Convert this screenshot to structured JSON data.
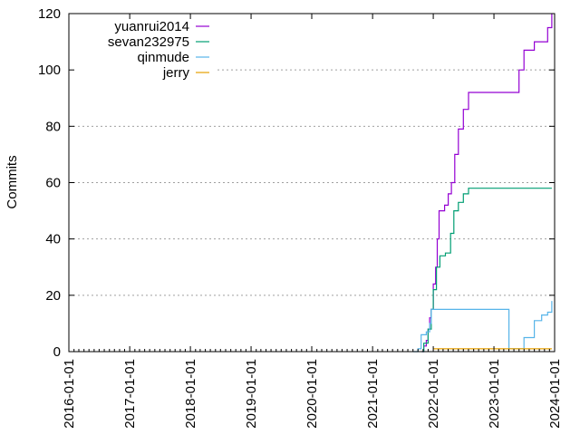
{
  "chart_data": {
    "type": "line",
    "xlabel": "",
    "ylabel": "Commits",
    "xlim": [
      "2016-01-01",
      "2024-01-01"
    ],
    "ylim": [
      0,
      120
    ],
    "x_ticks": [
      "2016-01-01",
      "2017-01-01",
      "2018-01-01",
      "2019-01-01",
      "2020-01-01",
      "2021-01-01",
      "2022-01-01",
      "2023-01-01",
      "2024-01-01"
    ],
    "y_ticks": [
      0,
      20,
      40,
      60,
      80,
      100,
      120
    ],
    "grid": "horizontal",
    "legend_position": "top-left",
    "series": [
      {
        "name": "yuanrui2014",
        "color": "#9400d3",
        "points": [
          [
            "2021-10-25",
            0
          ],
          [
            "2021-11-05",
            2
          ],
          [
            "2021-11-20",
            4
          ],
          [
            "2021-12-01",
            8
          ],
          [
            "2021-12-10",
            12
          ],
          [
            "2021-12-20",
            15
          ],
          [
            "2022-01-01",
            24
          ],
          [
            "2022-01-15",
            30
          ],
          [
            "2022-01-25",
            40
          ],
          [
            "2022-02-05",
            50
          ],
          [
            "2022-03-10",
            52
          ],
          [
            "2022-04-01",
            56
          ],
          [
            "2022-04-20",
            60
          ],
          [
            "2022-05-10",
            70
          ],
          [
            "2022-06-01",
            79
          ],
          [
            "2022-07-01",
            86
          ],
          [
            "2022-08-01",
            92
          ],
          [
            "2023-05-01",
            92
          ],
          [
            "2023-06-01",
            100
          ],
          [
            "2023-07-01",
            107
          ],
          [
            "2023-09-01",
            110
          ],
          [
            "2023-11-20",
            115
          ],
          [
            "2023-12-15",
            120
          ]
        ]
      },
      {
        "name": "sevan232975",
        "color": "#009e73",
        "points": [
          [
            "2021-10-25",
            0
          ],
          [
            "2021-11-05",
            3
          ],
          [
            "2021-12-01",
            8
          ],
          [
            "2021-12-20",
            15
          ],
          [
            "2022-01-01",
            22
          ],
          [
            "2022-01-20",
            30
          ],
          [
            "2022-02-10",
            34
          ],
          [
            "2022-03-15",
            35
          ],
          [
            "2022-04-15",
            42
          ],
          [
            "2022-05-05",
            50
          ],
          [
            "2022-06-01",
            53
          ],
          [
            "2022-07-01",
            56
          ],
          [
            "2022-08-01",
            58
          ],
          [
            "2023-12-15",
            58
          ]
        ]
      },
      {
        "name": "qinmude",
        "color": "#56b4e9",
        "points": [
          [
            "2021-09-01",
            0
          ],
          [
            "2021-10-01",
            1
          ],
          [
            "2021-10-20",
            6
          ],
          [
            "2021-11-20",
            7
          ],
          [
            "2021-12-10",
            10
          ],
          [
            "2021-12-20",
            15
          ],
          [
            "2023-04-01",
            1
          ],
          [
            "2023-07-01",
            5
          ],
          [
            "2023-09-01",
            11
          ],
          [
            "2023-10-15",
            13
          ],
          [
            "2023-11-20",
            14
          ],
          [
            "2023-12-15",
            18
          ]
        ]
      },
      {
        "name": "jerry",
        "color": "#e69f00",
        "points": [
          [
            "2022-01-01",
            1
          ],
          [
            "2023-12-15",
            1
          ]
        ]
      }
    ]
  }
}
